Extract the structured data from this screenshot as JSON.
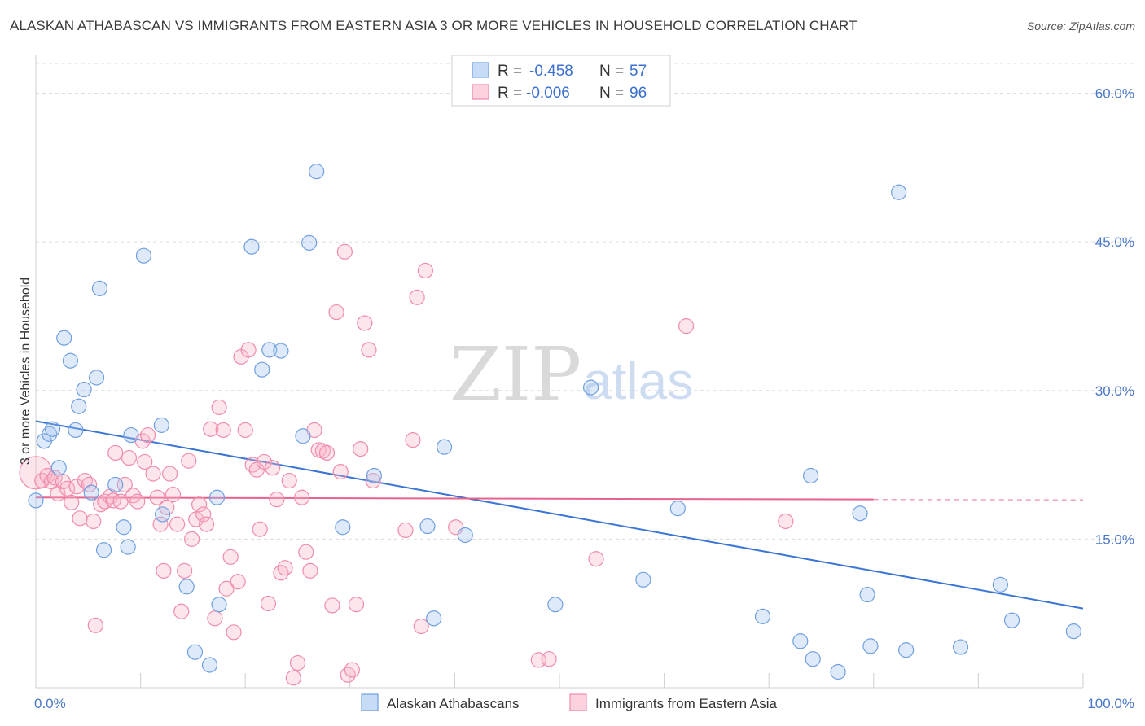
{
  "title": "ALASKAN ATHABASCAN VS IMMIGRANTS FROM EASTERN ASIA 3 OR MORE VEHICLES IN HOUSEHOLD CORRELATION CHART",
  "source": "Source: ZipAtlas.com",
  "watermark": {
    "zip": "ZIP",
    "atlas": "atlas"
  },
  "legend": {
    "rows": [
      {
        "r_label": "R =",
        "r_value": "-0.458",
        "n_label": "N =",
        "n_value": "57"
      },
      {
        "r_label": "R =",
        "r_value": "-0.006",
        "n_label": "N =",
        "n_value": "96"
      }
    ]
  },
  "bottom_legend": [
    "Alaskan Athabascans",
    "Immigrants from Eastern Asia"
  ],
  "chart_data": {
    "type": "scatter",
    "title": "ALASKAN ATHABASCAN VS IMMIGRANTS FROM EASTERN ASIA 3 OR MORE VEHICLES IN HOUSEHOLD CORRELATION CHART",
    "xlabel": "",
    "ylabel": "3 or more Vehicles in Household",
    "xlim": [
      0,
      100
    ],
    "ylim": [
      0,
      63
    ],
    "x_ticks": [
      "0.0%",
      "100.0%"
    ],
    "y_ticks": [
      {
        "value": 15,
        "label": "15.0%"
      },
      {
        "value": 30,
        "label": "30.0%"
      },
      {
        "value": 45,
        "label": "45.0%"
      },
      {
        "value": 60,
        "label": "60.0%"
      }
    ],
    "grid": true,
    "legend_position": "top-center",
    "colors": {
      "blue": "#6f9fe0",
      "blue_fill": "rgba(160,195,240,0.35)",
      "pink": "#f08cab",
      "pink_fill": "rgba(248,180,200,0.35)",
      "blue_line": "#3a74d4",
      "pink_line": "#e8638c"
    },
    "series": [
      {
        "name": "Alaskan Athabascans",
        "color": "#6f9fe0",
        "trend": {
          "x": [
            0,
            100
          ],
          "y": [
            26.9,
            8.0
          ]
        },
        "points": [
          [
            0.0,
            18.9
          ],
          [
            0.8,
            24.9
          ],
          [
            1.3,
            25.6
          ],
          [
            1.6,
            26.1
          ],
          [
            2.2,
            22.2
          ],
          [
            2.7,
            35.3
          ],
          [
            3.3,
            33.0
          ],
          [
            3.8,
            26.0
          ],
          [
            4.1,
            28.4
          ],
          [
            4.6,
            30.1
          ],
          [
            5.3,
            19.7
          ],
          [
            5.8,
            31.3
          ],
          [
            6.1,
            40.3
          ],
          [
            6.5,
            13.9
          ],
          [
            7.6,
            20.5
          ],
          [
            8.4,
            16.2
          ],
          [
            8.8,
            14.2
          ],
          [
            9.1,
            25.5
          ],
          [
            10.3,
            43.6
          ],
          [
            12.0,
            26.5
          ],
          [
            12.1,
            17.5
          ],
          [
            14.4,
            10.2
          ],
          [
            15.2,
            3.6
          ],
          [
            16.6,
            2.3
          ],
          [
            17.3,
            19.2
          ],
          [
            17.5,
            8.4
          ],
          [
            20.6,
            44.5
          ],
          [
            21.6,
            32.1
          ],
          [
            22.3,
            34.1
          ],
          [
            23.4,
            34.0
          ],
          [
            25.5,
            25.4
          ],
          [
            26.1,
            44.9
          ],
          [
            26.8,
            52.1
          ],
          [
            29.3,
            16.2
          ],
          [
            32.3,
            21.4
          ],
          [
            37.4,
            16.3
          ],
          [
            38.0,
            7.0
          ],
          [
            39.0,
            24.3
          ],
          [
            41.0,
            15.4
          ],
          [
            49.6,
            8.4
          ],
          [
            53.0,
            30.3
          ],
          [
            58.0,
            10.9
          ],
          [
            61.3,
            18.1
          ],
          [
            69.4,
            7.2
          ],
          [
            73.0,
            4.7
          ],
          [
            74.0,
            21.4
          ],
          [
            74.2,
            2.9
          ],
          [
            76.6,
            1.6
          ],
          [
            78.7,
            17.6
          ],
          [
            79.4,
            9.4
          ],
          [
            79.7,
            4.2
          ],
          [
            82.4,
            50.0
          ],
          [
            83.1,
            3.8
          ],
          [
            88.3,
            4.1
          ],
          [
            92.1,
            10.4
          ],
          [
            93.2,
            6.8
          ],
          [
            99.1,
            5.7
          ]
        ]
      },
      {
        "name": "Immigrants from Eastern Asia",
        "color": "#f08cab",
        "trend": {
          "x": [
            0,
            80
          ],
          "y": [
            19.2,
            19.0
          ],
          "dashed_to": 100
        },
        "points": [
          [
            0.0,
            21.7
          ],
          [
            0.6,
            20.9
          ],
          [
            1.1,
            21.4
          ],
          [
            1.5,
            20.8
          ],
          [
            1.8,
            21.2
          ],
          [
            2.1,
            19.6
          ],
          [
            2.6,
            20.8
          ],
          [
            3.0,
            20.1
          ],
          [
            3.4,
            18.7
          ],
          [
            3.9,
            20.3
          ],
          [
            4.2,
            17.1
          ],
          [
            4.7,
            20.9
          ],
          [
            5.1,
            20.5
          ],
          [
            5.5,
            16.8
          ],
          [
            5.7,
            6.3
          ],
          [
            6.2,
            18.5
          ],
          [
            6.6,
            18.8
          ],
          [
            7.1,
            19.3
          ],
          [
            7.4,
            18.9
          ],
          [
            7.6,
            23.7
          ],
          [
            8.1,
            18.8
          ],
          [
            8.5,
            20.5
          ],
          [
            8.9,
            23.2
          ],
          [
            9.3,
            19.4
          ],
          [
            9.7,
            18.8
          ],
          [
            10.2,
            24.9
          ],
          [
            10.4,
            22.8
          ],
          [
            10.7,
            25.5
          ],
          [
            11.2,
            21.6
          ],
          [
            11.6,
            19.2
          ],
          [
            11.9,
            16.5
          ],
          [
            12.2,
            11.8
          ],
          [
            12.5,
            18.2
          ],
          [
            12.8,
            21.6
          ],
          [
            13.1,
            19.5
          ],
          [
            13.5,
            16.5
          ],
          [
            13.9,
            7.7
          ],
          [
            14.2,
            11.8
          ],
          [
            14.6,
            22.9
          ],
          [
            14.9,
            15.0
          ],
          [
            15.3,
            17.0
          ],
          [
            15.6,
            18.5
          ],
          [
            16.0,
            17.5
          ],
          [
            16.3,
            16.5
          ],
          [
            16.7,
            26.1
          ],
          [
            17.1,
            7.0
          ],
          [
            17.5,
            28.3
          ],
          [
            17.9,
            26.0
          ],
          [
            18.2,
            10.0
          ],
          [
            18.6,
            13.2
          ],
          [
            18.9,
            5.6
          ],
          [
            19.3,
            10.7
          ],
          [
            19.6,
            33.4
          ],
          [
            20.0,
            26.0
          ],
          [
            20.3,
            34.1
          ],
          [
            20.7,
            22.5
          ],
          [
            21.1,
            22.0
          ],
          [
            21.4,
            16.0
          ],
          [
            21.8,
            22.8
          ],
          [
            22.2,
            8.5
          ],
          [
            22.6,
            22.2
          ],
          [
            23.0,
            19.0
          ],
          [
            23.4,
            11.6
          ],
          [
            23.8,
            12.1
          ],
          [
            24.2,
            20.9
          ],
          [
            24.6,
            1.0
          ],
          [
            25.0,
            2.5
          ],
          [
            25.4,
            19.2
          ],
          [
            25.8,
            13.7
          ],
          [
            26.2,
            11.8
          ],
          [
            26.6,
            26.0
          ],
          [
            27.0,
            24.0
          ],
          [
            27.4,
            23.9
          ],
          [
            27.8,
            23.7
          ],
          [
            28.3,
            8.3
          ],
          [
            28.7,
            37.9
          ],
          [
            29.1,
            21.8
          ],
          [
            29.5,
            44.0
          ],
          [
            29.8,
            1.3
          ],
          [
            30.2,
            1.8
          ],
          [
            30.6,
            8.4
          ],
          [
            31.0,
            24.1
          ],
          [
            31.4,
            36.8
          ],
          [
            31.8,
            34.1
          ],
          [
            32.2,
            20.9
          ],
          [
            35.3,
            15.9
          ],
          [
            36.0,
            25.0
          ],
          [
            36.4,
            39.4
          ],
          [
            36.8,
            6.2
          ],
          [
            37.2,
            42.1
          ],
          [
            40.1,
            16.2
          ],
          [
            48.0,
            2.8
          ],
          [
            49.0,
            2.9
          ],
          [
            53.5,
            13.0
          ],
          [
            62.1,
            36.5
          ],
          [
            71.6,
            16.8
          ]
        ]
      }
    ]
  }
}
